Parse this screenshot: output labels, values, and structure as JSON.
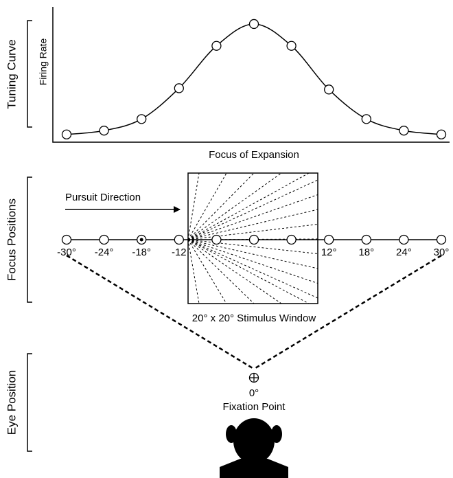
{
  "sections": {
    "tuning": "Tuning Curve",
    "focus": "Focus Positions",
    "eye": "Eye Position"
  },
  "tuning_curve": {
    "y_label": "Firing Rate",
    "x_label": "Focus of Expansion",
    "values": [
      6,
      9,
      18,
      42,
      75,
      92,
      75,
      41,
      18,
      9,
      6
    ],
    "ylim": [
      0,
      100
    ]
  },
  "focus_positions": {
    "labels": [
      "-30°",
      "-24°",
      "-18°",
      "-12",
      null,
      null,
      null,
      "12°",
      "18°",
      "24°",
      "30°"
    ],
    "pursuit": "Pursuit Direction",
    "window": "20° x 20° Stimulus Window"
  },
  "fixation": {
    "angle": "0°",
    "label": "Fixation Point"
  }
}
